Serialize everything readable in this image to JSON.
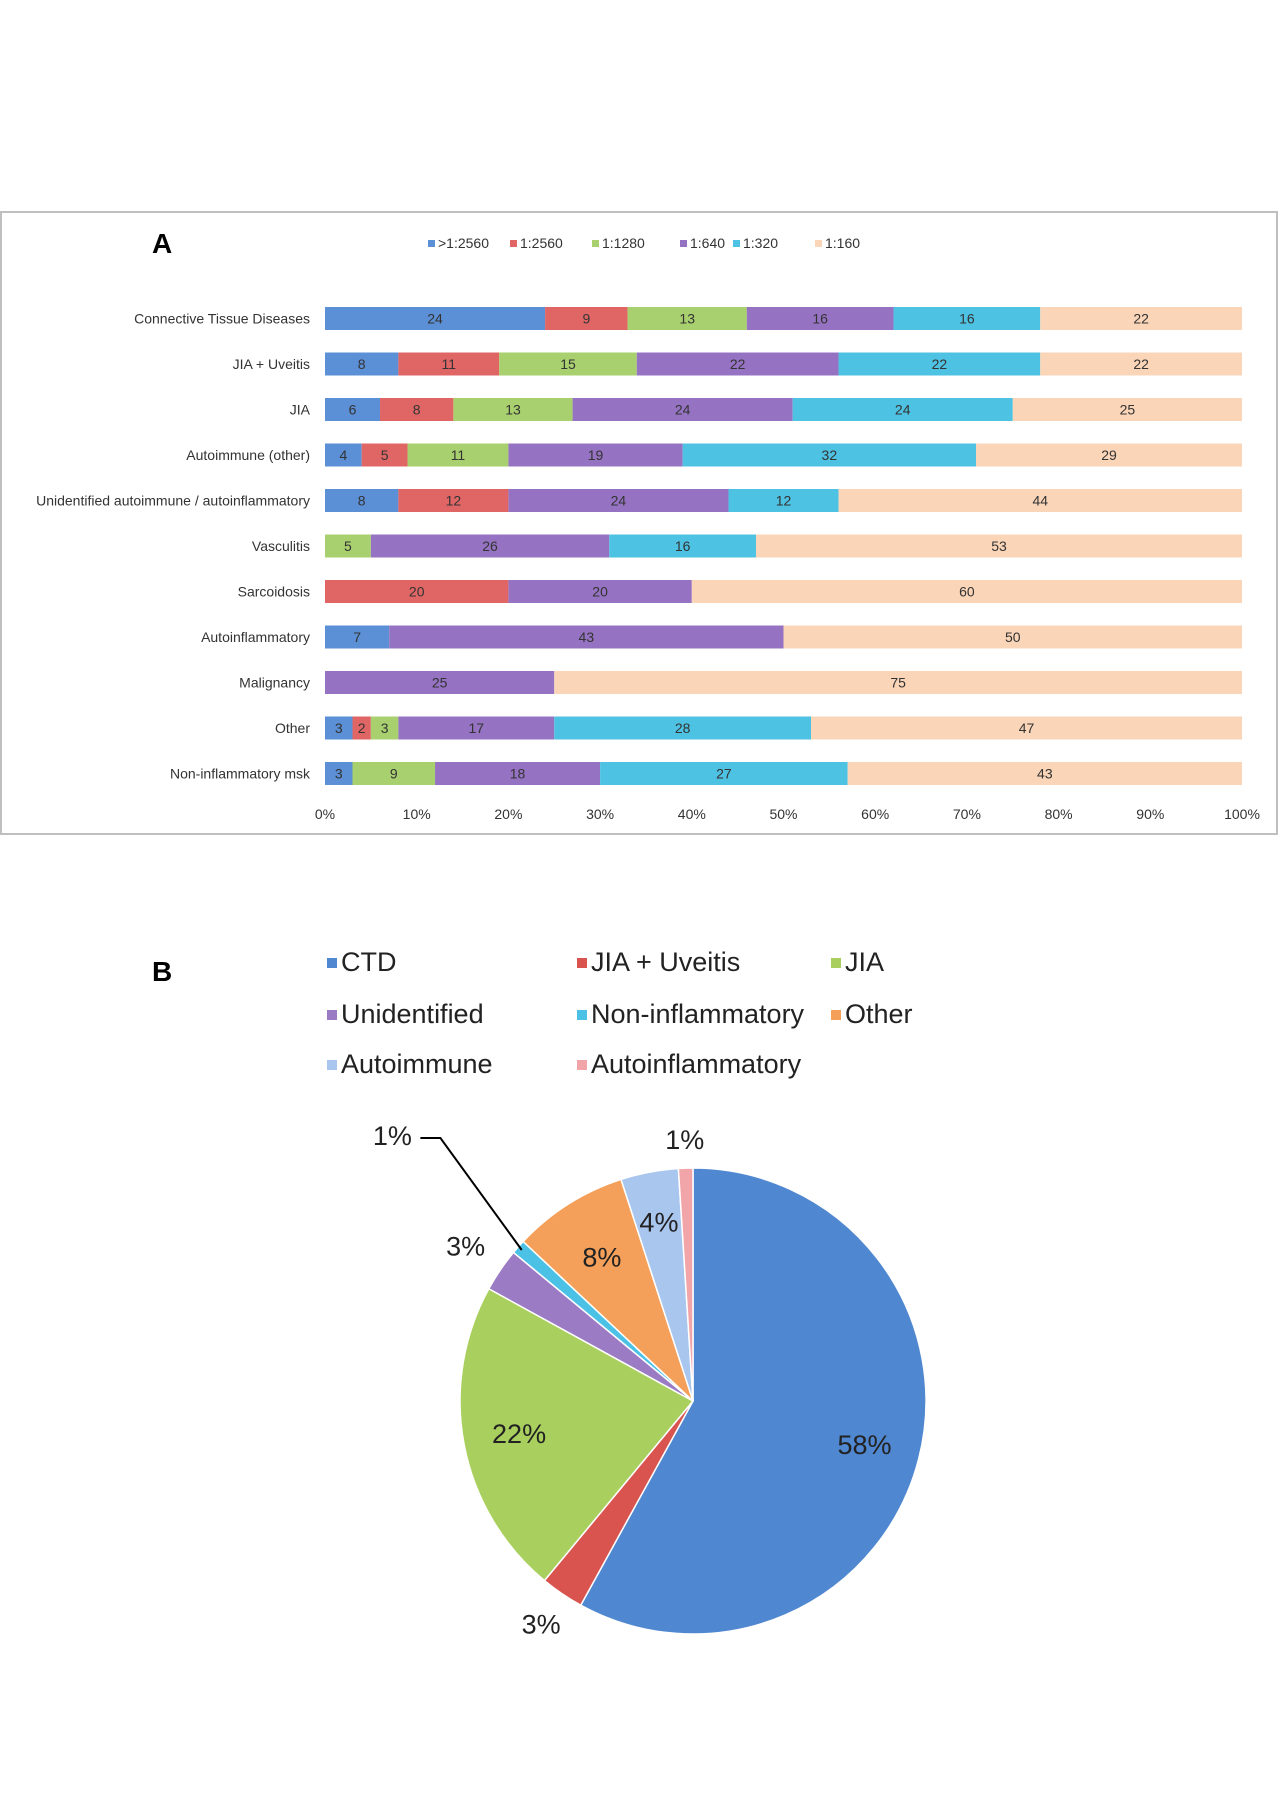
{
  "chart_data": [
    {
      "type": "bar",
      "orientation": "horizontal",
      "stacked": "percent",
      "panel_label": "A",
      "title": "",
      "xlabel": "",
      "ylabel": "",
      "xlim": [
        0,
        100
      ],
      "x_ticks": [
        "0%",
        "10%",
        "20%",
        "30%",
        "40%",
        "50%",
        "60%",
        "70%",
        "80%",
        "90%",
        "100%"
      ],
      "legend_position": "top",
      "categories": [
        "Connective Tissue Diseases",
        "JIA + Uveitis",
        "JIA",
        "Autoimmune (other)",
        "Unidentified autoimmune / autoinflammatory",
        "Vasculitis",
        "Sarcoidosis",
        "Autoinflammatory",
        "Malignancy",
        "Other",
        "Non-inflammatory msk"
      ],
      "series": [
        {
          "name": ">1:2560",
          "color": "#5b8fd6",
          "values": [
            24,
            8,
            6,
            4,
            8,
            0,
            0,
            7,
            0,
            3,
            3
          ]
        },
        {
          "name": "1:2560",
          "color": "#e06666",
          "values": [
            9,
            11,
            8,
            5,
            12,
            0,
            20,
            0,
            0,
            2,
            0
          ]
        },
        {
          "name": "1:1280",
          "color": "#a8d06e",
          "values": [
            13,
            15,
            13,
            11,
            0,
            5,
            0,
            0,
            0,
            3,
            9
          ]
        },
        {
          "name": "1:640",
          "color": "#9673c2",
          "values": [
            16,
            22,
            24,
            19,
            24,
            26,
            20,
            43,
            25,
            17,
            18
          ]
        },
        {
          "name": "1:320",
          "color": "#4ec2e2",
          "values": [
            16,
            22,
            24,
            32,
            12,
            16,
            0,
            0,
            0,
            28,
            27
          ]
        },
        {
          "name": "1:160",
          "color": "#fad5b8",
          "values": [
            22,
            22,
            25,
            29,
            44,
            53,
            60,
            50,
            75,
            47,
            43
          ]
        }
      ]
    },
    {
      "type": "pie",
      "panel_label": "B",
      "title": "",
      "legend_position": "top",
      "slices": [
        {
          "name": "CTD",
          "value": 58,
          "label": "58%",
          "color": "#4f87d0"
        },
        {
          "name": "JIA + Uveitis",
          "value": 3,
          "label": "3%",
          "color": "#d9534f"
        },
        {
          "name": "JIA",
          "value": 22,
          "label": "22%",
          "color": "#a9cf5e"
        },
        {
          "name": "Unidentified",
          "value": 3,
          "label": "3%",
          "color": "#9b7bc4"
        },
        {
          "name": "Non-inflammatory",
          "value": 1,
          "label": "1%",
          "color": "#4cc1e6"
        },
        {
          "name": "Other",
          "value": 8,
          "label": "8%",
          "color": "#f5a05a"
        },
        {
          "name": "Autoimmune",
          "value": 4,
          "label": "4%",
          "color": "#a9c6ef"
        },
        {
          "name": "Autoinflammatory",
          "value": 1,
          "label": "1%",
          "color": "#f2a5a8"
        }
      ]
    }
  ]
}
